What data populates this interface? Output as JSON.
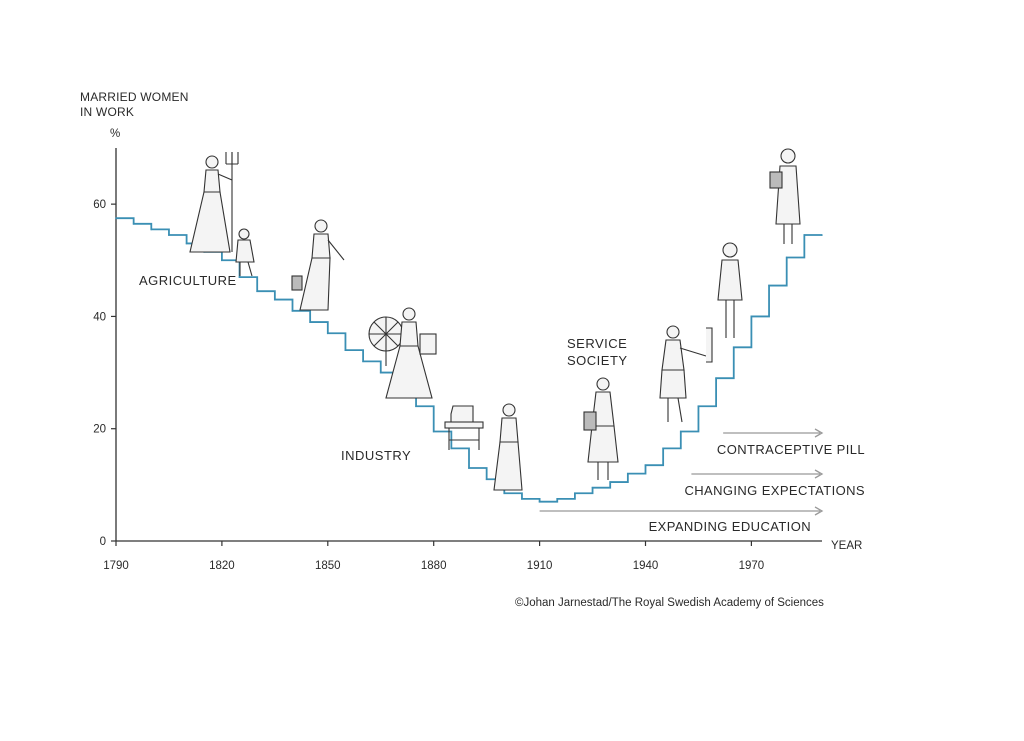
{
  "chart_data": {
    "type": "line",
    "step": true,
    "title": "",
    "ylabel": [
      "MARRIED WOMEN",
      "IN WORK"
    ],
    "yunit": "%",
    "xlabel": "YEAR",
    "xlim": [
      1790,
      1990
    ],
    "ylim": [
      0,
      70
    ],
    "x_ticks": [
      1790,
      1820,
      1850,
      1880,
      1910,
      1940,
      1970
    ],
    "y_ticks": [
      0,
      20,
      40,
      60
    ],
    "line_color": "#3a8fb4",
    "series": [
      {
        "x": [
          1790,
          1795,
          1800,
          1805,
          1810,
          1815,
          1820,
          1825,
          1830,
          1835,
          1840,
          1845,
          1850,
          1855,
          1860,
          1865,
          1870,
          1875,
          1880,
          1885,
          1890,
          1895,
          1900,
          1905,
          1910,
          1915,
          1920,
          1925,
          1930,
          1935,
          1940,
          1945,
          1950,
          1955,
          1960,
          1965,
          1970,
          1975,
          1980,
          1985,
          1990
        ],
        "y": [
          57.5,
          56.5,
          55.5,
          54.5,
          53,
          51.5,
          50,
          47,
          44.5,
          43,
          41,
          39,
          37,
          34,
          32,
          30,
          27.5,
          24,
          19.5,
          16.5,
          13,
          11,
          8.5,
          7.5,
          7,
          7.5,
          8.5,
          9.5,
          10.5,
          12,
          13.5,
          16.5,
          19.5,
          24,
          29,
          34.5,
          40,
          45.5,
          50.5,
          54.5,
          54.5
        ]
      }
    ],
    "annotations": {
      "eras": [
        {
          "label": "AGRICULTURE"
        },
        {
          "label": "INDUSTRY"
        },
        {
          "label": "SERVICE",
          "label2": "SOCIETY"
        }
      ],
      "factors": [
        {
          "label": "CONTRACEPTIVE PILL",
          "from_year": 1962
        },
        {
          "label": "CHANGING EXPECTATIONS",
          "from_year": 1953
        },
        {
          "label": "EXPANDING EDUCATION",
          "from_year": 1910
        }
      ]
    },
    "arrow_color": "#999999"
  },
  "credit": "©Johan Jarnestad/The Royal Swedish Academy of Sciences",
  "figures": [
    {
      "name": "farm-woman-with-pitchfork-icon"
    },
    {
      "name": "child-icon"
    },
    {
      "name": "woman-carrying-bucket-icon"
    },
    {
      "name": "spinning-wheel-icon"
    },
    {
      "name": "woman-at-spinning-wheel-icon"
    },
    {
      "name": "sewing-machine-icon"
    },
    {
      "name": "seamstress-icon"
    },
    {
      "name": "office-woman-with-folder-icon"
    },
    {
      "name": "teacher-at-chart-icon"
    },
    {
      "name": "businesswoman-icon"
    },
    {
      "name": "professional-woman-with-bag-icon"
    }
  ]
}
